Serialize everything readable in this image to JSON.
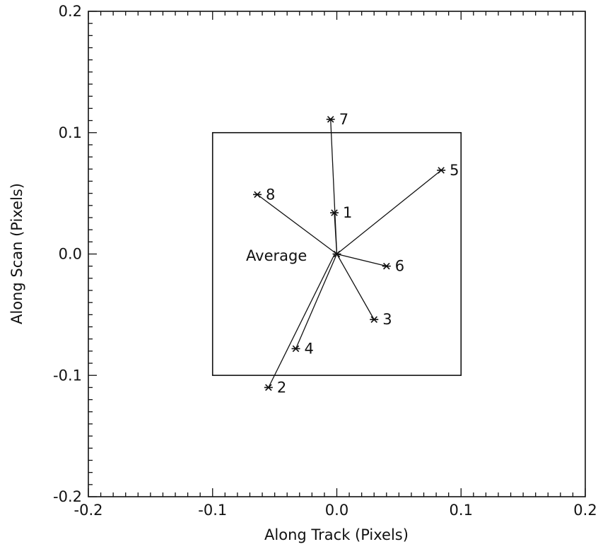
{
  "chart_data": {
    "type": "scatter",
    "xlabel": "Along Track (Pixels)",
    "ylabel": "Along Scan (Pixels)",
    "xlim": [
      -0.2,
      0.2
    ],
    "ylim": [
      -0.2,
      0.2
    ],
    "x_ticks": [
      "-0.2",
      "-0.1",
      "0.0",
      "0.1",
      "0.2"
    ],
    "y_ticks": [
      "0.2",
      "0.1",
      "0.0",
      "-0.1",
      "-0.2"
    ],
    "grid": false,
    "reference_box": {
      "x": [
        -0.1,
        0.1
      ],
      "y": [
        -0.1,
        0.1
      ]
    },
    "center": {
      "label": "Average",
      "x": 0.0,
      "y": 0.0
    },
    "points": [
      {
        "label": "1",
        "x": -0.002,
        "y": 0.034
      },
      {
        "label": "2",
        "x": -0.055,
        "y": -0.11
      },
      {
        "label": "3",
        "x": 0.03,
        "y": -0.054
      },
      {
        "label": "4",
        "x": -0.033,
        "y": -0.078
      },
      {
        "label": "5",
        "x": 0.084,
        "y": 0.069
      },
      {
        "label": "6",
        "x": 0.04,
        "y": -0.01
      },
      {
        "label": "7",
        "x": -0.005,
        "y": 0.111
      },
      {
        "label": "8",
        "x": -0.064,
        "y": 0.049
      }
    ]
  }
}
